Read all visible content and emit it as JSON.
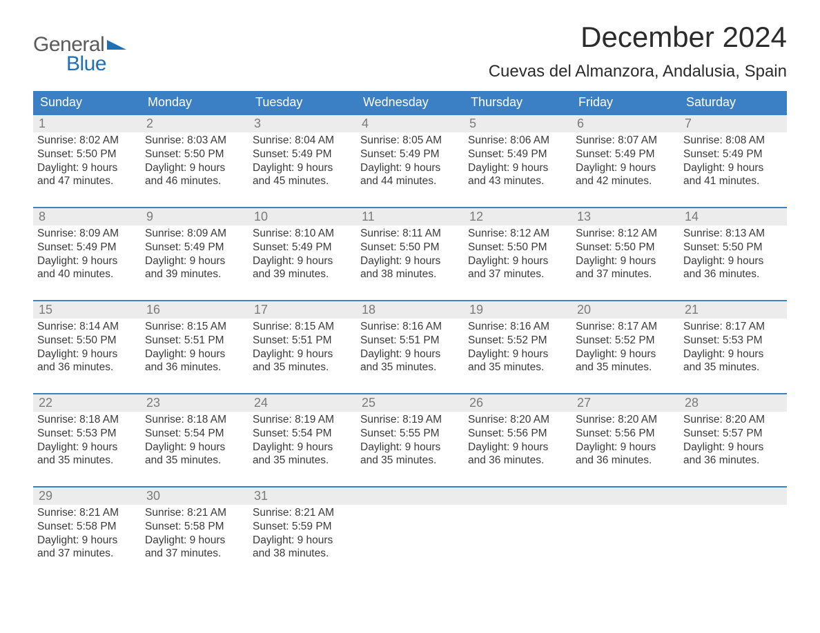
{
  "logo": {
    "text1": "General",
    "text2": "Blue"
  },
  "title": "December 2024",
  "location": "Cuevas del Almanzora, Andalusia, Spain",
  "colors": {
    "header_bg": "#3b7fc4",
    "header_text": "#ffffff",
    "daynum_bg": "#ececec",
    "daynum_text": "#7a7a7a",
    "body_text": "#3a3a3a",
    "week_border": "#3b7fc4",
    "logo_gray": "#5a5a5a",
    "logo_blue": "#1f6fb2"
  },
  "typography": {
    "title_fontsize": 42,
    "location_fontsize": 24,
    "dayhead_fontsize": 18,
    "daynum_fontsize": 18,
    "cell_fontsize": 15.5
  },
  "day_headers": [
    "Sunday",
    "Monday",
    "Tuesday",
    "Wednesday",
    "Thursday",
    "Friday",
    "Saturday"
  ],
  "weeks": [
    [
      {
        "n": "1",
        "sr": "Sunrise: 8:02 AM",
        "ss": "Sunset: 5:50 PM",
        "d1": "Daylight: 9 hours",
        "d2": "and 47 minutes."
      },
      {
        "n": "2",
        "sr": "Sunrise: 8:03 AM",
        "ss": "Sunset: 5:50 PM",
        "d1": "Daylight: 9 hours",
        "d2": "and 46 minutes."
      },
      {
        "n": "3",
        "sr": "Sunrise: 8:04 AM",
        "ss": "Sunset: 5:49 PM",
        "d1": "Daylight: 9 hours",
        "d2": "and 45 minutes."
      },
      {
        "n": "4",
        "sr": "Sunrise: 8:05 AM",
        "ss": "Sunset: 5:49 PM",
        "d1": "Daylight: 9 hours",
        "d2": "and 44 minutes."
      },
      {
        "n": "5",
        "sr": "Sunrise: 8:06 AM",
        "ss": "Sunset: 5:49 PM",
        "d1": "Daylight: 9 hours",
        "d2": "and 43 minutes."
      },
      {
        "n": "6",
        "sr": "Sunrise: 8:07 AM",
        "ss": "Sunset: 5:49 PM",
        "d1": "Daylight: 9 hours",
        "d2": "and 42 minutes."
      },
      {
        "n": "7",
        "sr": "Sunrise: 8:08 AM",
        "ss": "Sunset: 5:49 PM",
        "d1": "Daylight: 9 hours",
        "d2": "and 41 minutes."
      }
    ],
    [
      {
        "n": "8",
        "sr": "Sunrise: 8:09 AM",
        "ss": "Sunset: 5:49 PM",
        "d1": "Daylight: 9 hours",
        "d2": "and 40 minutes."
      },
      {
        "n": "9",
        "sr": "Sunrise: 8:09 AM",
        "ss": "Sunset: 5:49 PM",
        "d1": "Daylight: 9 hours",
        "d2": "and 39 minutes."
      },
      {
        "n": "10",
        "sr": "Sunrise: 8:10 AM",
        "ss": "Sunset: 5:49 PM",
        "d1": "Daylight: 9 hours",
        "d2": "and 39 minutes."
      },
      {
        "n": "11",
        "sr": "Sunrise: 8:11 AM",
        "ss": "Sunset: 5:50 PM",
        "d1": "Daylight: 9 hours",
        "d2": "and 38 minutes."
      },
      {
        "n": "12",
        "sr": "Sunrise: 8:12 AM",
        "ss": "Sunset: 5:50 PM",
        "d1": "Daylight: 9 hours",
        "d2": "and 37 minutes."
      },
      {
        "n": "13",
        "sr": "Sunrise: 8:12 AM",
        "ss": "Sunset: 5:50 PM",
        "d1": "Daylight: 9 hours",
        "d2": "and 37 minutes."
      },
      {
        "n": "14",
        "sr": "Sunrise: 8:13 AM",
        "ss": "Sunset: 5:50 PM",
        "d1": "Daylight: 9 hours",
        "d2": "and 36 minutes."
      }
    ],
    [
      {
        "n": "15",
        "sr": "Sunrise: 8:14 AM",
        "ss": "Sunset: 5:50 PM",
        "d1": "Daylight: 9 hours",
        "d2": "and 36 minutes."
      },
      {
        "n": "16",
        "sr": "Sunrise: 8:15 AM",
        "ss": "Sunset: 5:51 PM",
        "d1": "Daylight: 9 hours",
        "d2": "and 36 minutes."
      },
      {
        "n": "17",
        "sr": "Sunrise: 8:15 AM",
        "ss": "Sunset: 5:51 PM",
        "d1": "Daylight: 9 hours",
        "d2": "and 35 minutes."
      },
      {
        "n": "18",
        "sr": "Sunrise: 8:16 AM",
        "ss": "Sunset: 5:51 PM",
        "d1": "Daylight: 9 hours",
        "d2": "and 35 minutes."
      },
      {
        "n": "19",
        "sr": "Sunrise: 8:16 AM",
        "ss": "Sunset: 5:52 PM",
        "d1": "Daylight: 9 hours",
        "d2": "and 35 minutes."
      },
      {
        "n": "20",
        "sr": "Sunrise: 8:17 AM",
        "ss": "Sunset: 5:52 PM",
        "d1": "Daylight: 9 hours",
        "d2": "and 35 minutes."
      },
      {
        "n": "21",
        "sr": "Sunrise: 8:17 AM",
        "ss": "Sunset: 5:53 PM",
        "d1": "Daylight: 9 hours",
        "d2": "and 35 minutes."
      }
    ],
    [
      {
        "n": "22",
        "sr": "Sunrise: 8:18 AM",
        "ss": "Sunset: 5:53 PM",
        "d1": "Daylight: 9 hours",
        "d2": "and 35 minutes."
      },
      {
        "n": "23",
        "sr": "Sunrise: 8:18 AM",
        "ss": "Sunset: 5:54 PM",
        "d1": "Daylight: 9 hours",
        "d2": "and 35 minutes."
      },
      {
        "n": "24",
        "sr": "Sunrise: 8:19 AM",
        "ss": "Sunset: 5:54 PM",
        "d1": "Daylight: 9 hours",
        "d2": "and 35 minutes."
      },
      {
        "n": "25",
        "sr": "Sunrise: 8:19 AM",
        "ss": "Sunset: 5:55 PM",
        "d1": "Daylight: 9 hours",
        "d2": "and 35 minutes."
      },
      {
        "n": "26",
        "sr": "Sunrise: 8:20 AM",
        "ss": "Sunset: 5:56 PM",
        "d1": "Daylight: 9 hours",
        "d2": "and 36 minutes."
      },
      {
        "n": "27",
        "sr": "Sunrise: 8:20 AM",
        "ss": "Sunset: 5:56 PM",
        "d1": "Daylight: 9 hours",
        "d2": "and 36 minutes."
      },
      {
        "n": "28",
        "sr": "Sunrise: 8:20 AM",
        "ss": "Sunset: 5:57 PM",
        "d1": "Daylight: 9 hours",
        "d2": "and 36 minutes."
      }
    ],
    [
      {
        "n": "29",
        "sr": "Sunrise: 8:21 AM",
        "ss": "Sunset: 5:58 PM",
        "d1": "Daylight: 9 hours",
        "d2": "and 37 minutes."
      },
      {
        "n": "30",
        "sr": "Sunrise: 8:21 AM",
        "ss": "Sunset: 5:58 PM",
        "d1": "Daylight: 9 hours",
        "d2": "and 37 minutes."
      },
      {
        "n": "31",
        "sr": "Sunrise: 8:21 AM",
        "ss": "Sunset: 5:59 PM",
        "d1": "Daylight: 9 hours",
        "d2": "and 38 minutes."
      },
      {
        "n": "",
        "sr": "",
        "ss": "",
        "d1": "",
        "d2": ""
      },
      {
        "n": "",
        "sr": "",
        "ss": "",
        "d1": "",
        "d2": ""
      },
      {
        "n": "",
        "sr": "",
        "ss": "",
        "d1": "",
        "d2": ""
      },
      {
        "n": "",
        "sr": "",
        "ss": "",
        "d1": "",
        "d2": ""
      }
    ]
  ]
}
